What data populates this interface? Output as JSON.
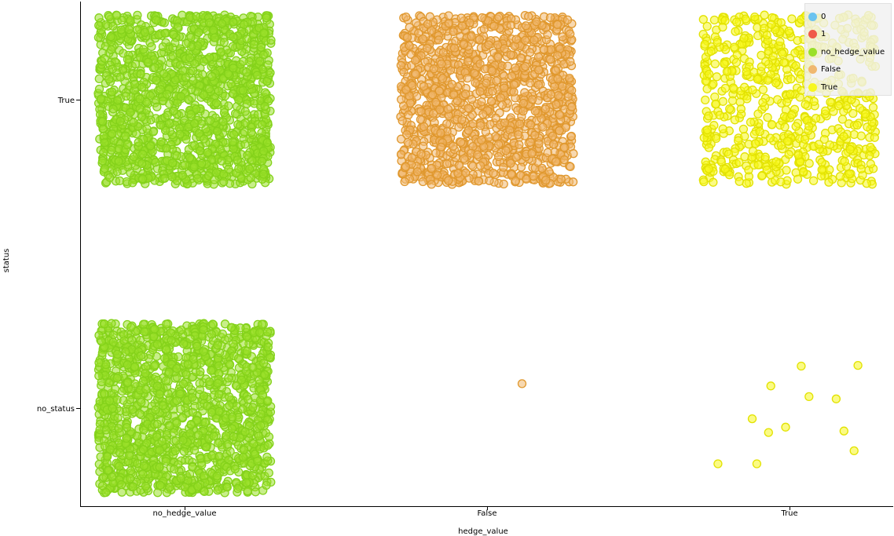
{
  "chart_data": {
    "type": "scatter",
    "title": "",
    "xlabel": "hedge_value",
    "ylabel": "status",
    "x_categories": [
      "no_hedge_value",
      "False",
      "True"
    ],
    "y_categories": [
      "no_status",
      "True"
    ],
    "jitter": true,
    "legend_position": "top-right",
    "grid": false,
    "color_by": "hedge_value",
    "legend": [
      {
        "label": "0",
        "color": "#6cc3f0"
      },
      {
        "label": "1",
        "color": "#f05a4a"
      },
      {
        "label": "no_hedge_value",
        "color": "#9ae02a"
      },
      {
        "label": "False",
        "color": "#f0b870"
      },
      {
        "label": "True",
        "color": "#f7f71f"
      }
    ],
    "groups": [
      {
        "x": "no_hedge_value",
        "y": "True",
        "count": 1400,
        "color": "#9ae02a",
        "stroke": "#84d21a"
      },
      {
        "x": "no_hedge_value",
        "y": "no_status",
        "count": 1400,
        "color": "#9ae02a",
        "stroke": "#84d21a"
      },
      {
        "x": "False",
        "y": "True",
        "count": 1300,
        "color": "#f0b870",
        "stroke": "#e0982e"
      },
      {
        "x": "False",
        "y": "no_status",
        "count": 1,
        "color": "#f0b870",
        "stroke": "#e0982e"
      },
      {
        "x": "True",
        "y": "True",
        "count": 650,
        "color": "#f7f71f",
        "stroke": "#e2e200"
      },
      {
        "x": "True",
        "y": "no_status",
        "count": 12,
        "color": "#f7f71f",
        "stroke": "#e2e200"
      }
    ]
  }
}
